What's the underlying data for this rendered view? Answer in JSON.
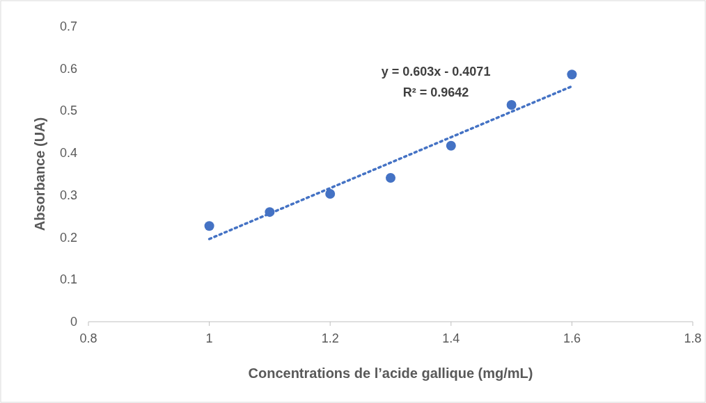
{
  "chart_data": {
    "type": "scatter",
    "xlabel": "Concentrations de  l’acide gallique (mg/mL)",
    "ylabel": "Absorbance (UA)",
    "x": [
      1,
      1.1,
      1.2,
      1.3,
      1.4,
      1.5,
      1.6
    ],
    "series": [
      {
        "type": "scatter",
        "color": "#4472c4",
        "marker": "circle",
        "values": [
          0.227,
          0.26,
          0.303,
          0.341,
          0.417,
          0.514,
          0.586
        ]
      },
      {
        "type": "line",
        "color": "#4472c4",
        "marker": "none",
        "line_style": "dotted",
        "x": [
          1,
          1.6
        ],
        "values": [
          0.196,
          0.558
        ]
      }
    ],
    "annotations": [
      "y = 0.603x - 0.4071",
      "R² = 0.9642"
    ],
    "xlim": [
      0.8,
      1.8
    ],
    "xticks": [
      0.8,
      1,
      1.2,
      1.4,
      1.6,
      1.8
    ],
    "ylim": [
      0,
      0.7
    ],
    "yticks": [
      0,
      0.1,
      0.2,
      0.3,
      0.4,
      0.5,
      0.6,
      0.7
    ],
    "grid": false
  }
}
